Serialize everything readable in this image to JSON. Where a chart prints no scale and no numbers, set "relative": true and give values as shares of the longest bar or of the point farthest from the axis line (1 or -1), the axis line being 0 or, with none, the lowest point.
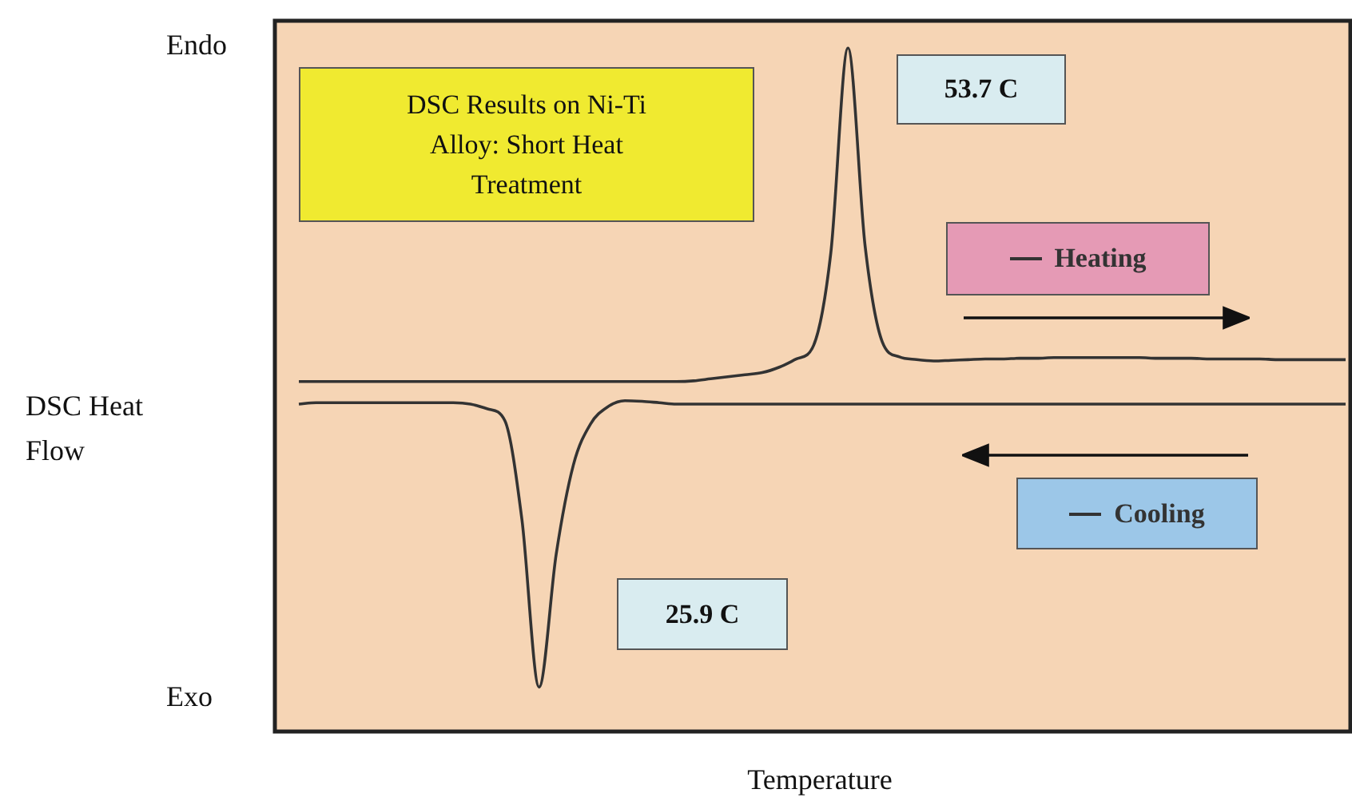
{
  "chart_data": {
    "type": "line",
    "relative": true,
    "title": "DSC Results on Ni-Ti Alloy: Short Heat Treatment",
    "xlabel": "Temperature",
    "ylabel": "DSC Heat Flow",
    "legend": "right",
    "marker": "none",
    "line_style": "solid",
    "categories": [
      null,
      null,
      null,
      null,
      null,
      null,
      null,
      null,
      null,
      null,
      null,
      null,
      null,
      null,
      null,
      null,
      null,
      null,
      null,
      null,
      null,
      null,
      null,
      null,
      null,
      null,
      null,
      null,
      null,
      null,
      null,
      null,
      null,
      null,
      null,
      null,
      null,
      null,
      null,
      null,
      null,
      null,
      null,
      null,
      null,
      null,
      null,
      null,
      null,
      null,
      null,
      null,
      null,
      null,
      null,
      null,
      null,
      null,
      null,
      null,
      null,
      null
    ],
    "series": [
      {
        "name": "Heating",
        "color": "#333333",
        "values": [
          0.512,
          0.512,
          0.512,
          0.512,
          0.512,
          0.512,
          0.512,
          0.512,
          0.512,
          0.512,
          0.512,
          0.512,
          0.512,
          0.512,
          0.512,
          0.512,
          0.512,
          0.512,
          0.512,
          0.512,
          0.512,
          0.512,
          0.512,
          0.513,
          0.516,
          0.519,
          0.522,
          0.525,
          0.533,
          0.545,
          0.565,
          0.7,
          1,
          0.71,
          0.57,
          0.548,
          0.544,
          0.542,
          0.543,
          0.544,
          0.545,
          0.545,
          0.546,
          0.546,
          0.547,
          0.547,
          0.547,
          0.547,
          0.547,
          0.547,
          0.546,
          0.546,
          0.546,
          0.545,
          0.545,
          0.545,
          0.545,
          0.544,
          0.544,
          0.544,
          0.544,
          0.544
        ]
      },
      {
        "name": "Cooling",
        "color": "#333333",
        "values": [
          0.479,
          0.481,
          0.481,
          0.481,
          0.481,
          0.481,
          0.481,
          0.481,
          0.481,
          0.481,
          0.479,
          0.472,
          0.455,
          0.31,
          0.065,
          0.26,
          0.39,
          0.45,
          0.475,
          0.484,
          0.483,
          0.481,
          0.479,
          0.479,
          0.479,
          0.479,
          0.479,
          0.479,
          0.479,
          0.479,
          0.479,
          0.479,
          0.479,
          0.479,
          0.479,
          0.479,
          0.479,
          0.479,
          0.479,
          0.479,
          0.479,
          0.479,
          0.479,
          0.479,
          0.479,
          0.479,
          0.479,
          0.479,
          0.479,
          0.479,
          0.479,
          0.479,
          0.479,
          0.479,
          0.479,
          0.479,
          0.479,
          0.479,
          0.479,
          0.479,
          0.479,
          0.479
        ]
      }
    ],
    "annotations": [
      "Endo",
      "Exo",
      "53.7 C",
      "25.9 C"
    ]
  }
}
